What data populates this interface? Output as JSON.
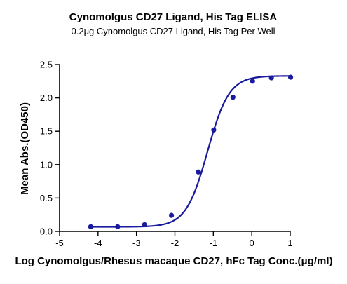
{
  "chart_data": {
    "type": "scatter",
    "title": "Cynomolgus CD27 Ligand, His Tag ELISA",
    "subtitle": "0.2μg Cynomolgus CD27 Ligand, His Tag Per Well",
    "xlabel": "Log Cynomolgus/Rhesus macaque CD27, hFc Tag Conc.(μg/ml)",
    "ylabel": "Mean Abs.(OD450)",
    "xlim": [
      -5,
      1
    ],
    "ylim": [
      0,
      2.5
    ],
    "xticks": [
      -5,
      -4,
      -3,
      -2,
      -1,
      0,
      1
    ],
    "yticks": [
      0.0,
      0.5,
      1.0,
      1.5,
      2.0,
      2.5
    ],
    "xtick_labels": [
      "-5",
      "-4",
      "-3",
      "-2",
      "-1",
      "0",
      "1"
    ],
    "ytick_labels": [
      "0.0",
      "0.5",
      "1.0",
      "1.5",
      "2.0",
      "2.5"
    ],
    "grid": false,
    "series": [
      {
        "color": "#1a1a9e",
        "x": [
          -4.19,
          -3.49,
          -2.79,
          -2.09,
          -1.39,
          -0.99,
          -0.49,
          0.02,
          0.51,
          1.01
        ],
        "y": [
          0.07,
          0.07,
          0.1,
          0.24,
          0.89,
          1.52,
          2.01,
          2.25,
          2.3,
          2.31
        ],
        "fit": {
          "model": "4PL",
          "bottom": 0.068,
          "top": 2.33,
          "logEC50": -1.15,
          "hill": 1.55
        }
      }
    ]
  }
}
